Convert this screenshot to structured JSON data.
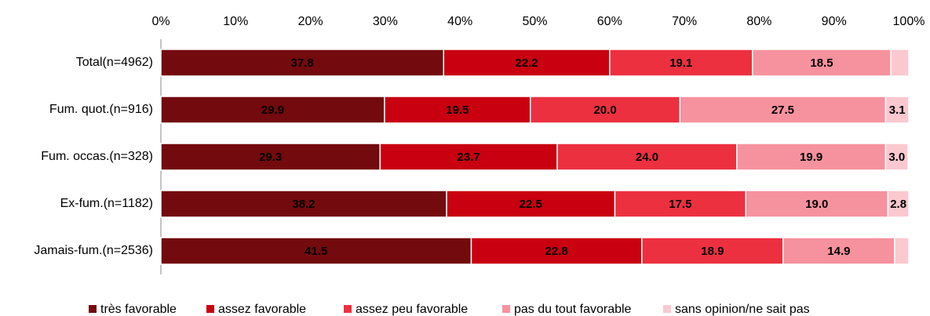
{
  "chart_data": {
    "type": "stacked-bar-horizontal",
    "categories": [
      "Total(n=4962)",
      "Fum. quot.(n=916)",
      "Fum. occas.(n=328)",
      "Ex-fum.(n=1182)",
      "Jamais-fum.(n=2536)"
    ],
    "series": [
      {
        "name": "très favorable",
        "color": "#730a0e",
        "values": [
          37.8,
          29.9,
          29.3,
          38.2,
          41.5
        ],
        "value_labels": [
          "37.8",
          "29.9",
          "29.3",
          "38.2",
          "41.5"
        ]
      },
      {
        "name": "assez favorable",
        "color": "#c8000f",
        "values": [
          22.2,
          19.5,
          23.7,
          22.5,
          22.8
        ],
        "value_labels": [
          "22.2",
          "19.5",
          "23.7",
          "22.5",
          "22.8"
        ]
      },
      {
        "name": "assez peu favorable",
        "color": "#ec3040",
        "values": [
          19.1,
          20.0,
          24.0,
          17.5,
          18.9
        ],
        "value_labels": [
          "19.1",
          "20.0",
          "24.0",
          "17.5",
          "18.9"
        ]
      },
      {
        "name": "pas du tout favorable",
        "color": "#f6929e",
        "values": [
          18.5,
          27.5,
          19.9,
          19.0,
          14.9
        ],
        "value_labels": [
          "18.5",
          "27.5",
          "19.9",
          "19.0",
          "14.9"
        ]
      },
      {
        "name": "sans opinion/ne sait pas",
        "color": "#fbc8cf",
        "values": [
          2.4,
          3.1,
          3.0,
          2.8,
          1.9
        ],
        "value_labels": [
          null,
          "3.1",
          "3.0",
          "2.8",
          null
        ]
      }
    ],
    "xlim": [
      0,
      100
    ],
    "xticks": [
      {
        "value": 0,
        "label": "0%"
      },
      {
        "value": 10,
        "label": "10%"
      },
      {
        "value": 20,
        "label": "20%"
      },
      {
        "value": 30,
        "label": "30%"
      },
      {
        "value": 40,
        "label": "40%"
      },
      {
        "value": 50,
        "label": "50%"
      },
      {
        "value": 60,
        "label": "60%"
      },
      {
        "value": 70,
        "label": "70%"
      },
      {
        "value": 80,
        "label": "80%"
      },
      {
        "value": 90,
        "label": "90%"
      },
      {
        "value": 100,
        "label": "100%"
      }
    ],
    "legend": "bottom"
  }
}
